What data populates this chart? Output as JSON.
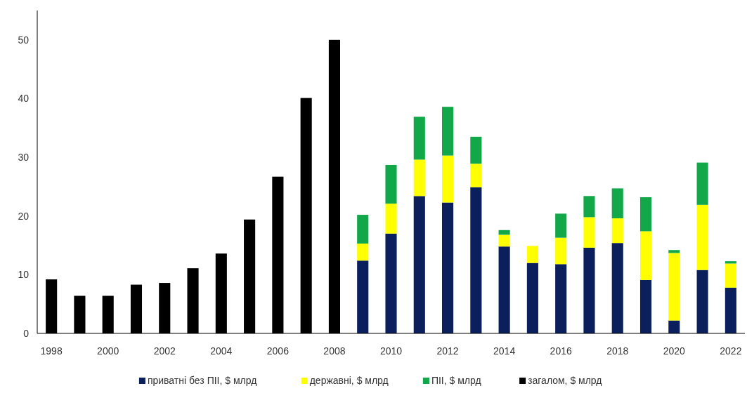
{
  "chart_data": {
    "type": "bar",
    "stacked": true,
    "categories": [
      "1998",
      null,
      "2000",
      null,
      "2002",
      null,
      "2004",
      null,
      "2006",
      null,
      "2008",
      null,
      "2010",
      null,
      "2012",
      null,
      "2014",
      null,
      "2016",
      null,
      "2018",
      null,
      "2020",
      null,
      "2022"
    ],
    "series": [
      {
        "name": "приватні без ПІІ, $ млрд",
        "color": "#0a1f5c",
        "values": [
          null,
          null,
          null,
          null,
          null,
          null,
          null,
          null,
          null,
          null,
          null,
          12.4,
          17.0,
          23.4,
          22.3,
          24.9,
          14.8,
          12.0,
          11.8,
          14.6,
          15.4,
          9.1,
          2.2,
          10.8,
          7.8
        ]
      },
      {
        "name": "державні, $ млрд",
        "color": "#ffff00",
        "values": [
          null,
          null,
          null,
          null,
          null,
          null,
          null,
          null,
          null,
          null,
          null,
          2.9,
          5.1,
          6.2,
          8.0,
          4.0,
          2.0,
          2.9,
          4.5,
          5.2,
          4.2,
          8.3,
          11.5,
          11.1,
          4.1
        ]
      },
      {
        "name": "ПІІ, $ млрд",
        "color": "#12a84a",
        "values": [
          null,
          null,
          null,
          null,
          null,
          null,
          null,
          null,
          null,
          null,
          null,
          4.9,
          6.6,
          7.3,
          8.3,
          4.6,
          0.8,
          0,
          4.1,
          3.6,
          5.1,
          5.8,
          0.5,
          7.2,
          0.4
        ]
      },
      {
        "name": "загалом, $ млрд",
        "color": "#000000",
        "values": [
          9.2,
          6.4,
          6.4,
          8.3,
          8.6,
          11.1,
          13.6,
          19.4,
          26.7,
          40.1,
          50.0,
          null,
          null,
          null,
          null,
          null,
          null,
          null,
          null,
          null,
          null,
          null,
          null,
          null,
          null
        ]
      }
    ],
    "ylim": [
      0,
      55
    ],
    "yticks": [
      0,
      10,
      20,
      30,
      40,
      50
    ],
    "legend": "bottom"
  }
}
